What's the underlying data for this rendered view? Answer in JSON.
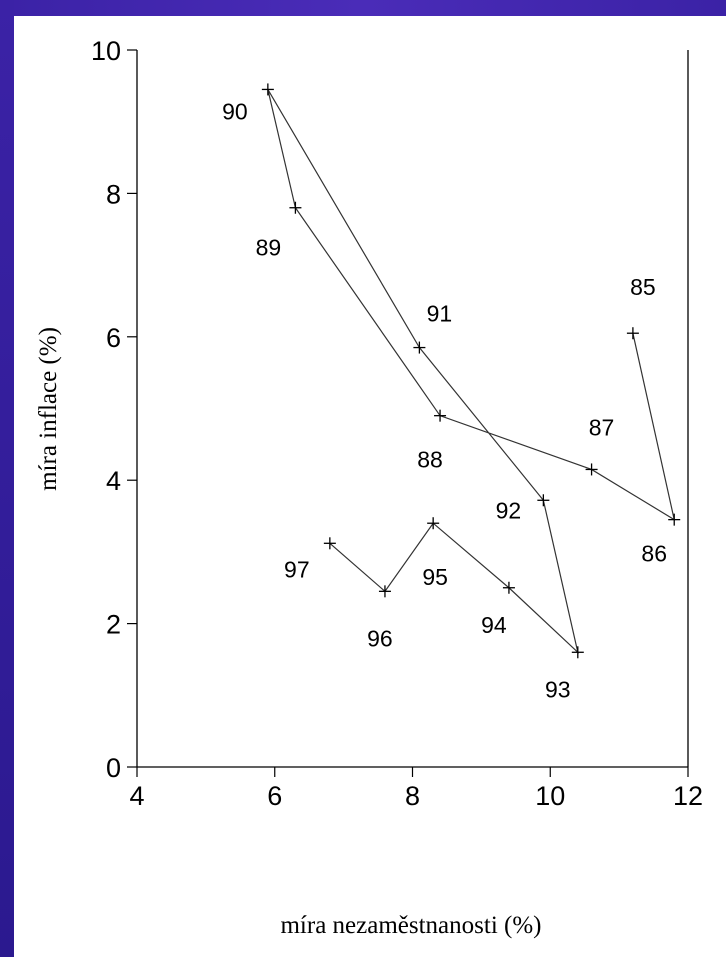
{
  "chart_data": {
    "type": "line",
    "title": "",
    "xlabel": "míra nezaměstnanosti (%)",
    "ylabel": "míra inflace (%)",
    "xlim": [
      4,
      12
    ],
    "ylim": [
      0,
      10
    ],
    "x_ticks": [
      4,
      6,
      8,
      10,
      12
    ],
    "y_ticks": [
      0,
      2,
      4,
      6,
      8,
      10
    ],
    "grid": false,
    "legend": "none",
    "series": [
      {
        "points": [
          {
            "label": "85",
            "x": 11.2,
            "y": 6.05
          },
          {
            "label": "86",
            "x": 11.8,
            "y": 3.45
          },
          {
            "label": "87",
            "x": 10.6,
            "y": 4.15
          },
          {
            "label": "88",
            "x": 8.4,
            "y": 4.9
          },
          {
            "label": "89",
            "x": 6.3,
            "y": 7.8
          },
          {
            "label": "90",
            "x": 5.9,
            "y": 9.45
          },
          {
            "label": "91",
            "x": 8.1,
            "y": 5.85
          },
          {
            "label": "92",
            "x": 9.9,
            "y": 3.72
          },
          {
            "label": "93",
            "x": 10.4,
            "y": 1.6
          },
          {
            "label": "94",
            "x": 9.4,
            "y": 2.5
          },
          {
            "label": "95",
            "x": 8.3,
            "y": 3.4
          },
          {
            "label": "96",
            "x": 7.6,
            "y": 2.45
          },
          {
            "label": "97",
            "x": 6.8,
            "y": 3.12
          }
        ]
      }
    ]
  }
}
